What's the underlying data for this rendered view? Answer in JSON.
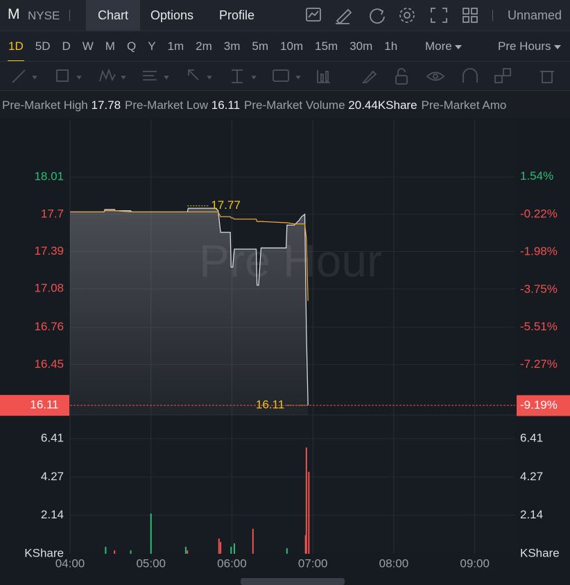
{
  "header": {
    "symbol": "M",
    "exchange": "NYSE",
    "tabs": [
      "Chart",
      "Options",
      "Profile"
    ],
    "layout_name": "Unnamed"
  },
  "timeframes": {
    "items": [
      "1D",
      "5D",
      "D",
      "W",
      "M",
      "Q",
      "Y",
      "1m",
      "2m",
      "3m",
      "5m",
      "10m",
      "15m",
      "30m",
      "1h"
    ],
    "more": "More",
    "session": "Pre Hours"
  },
  "stats": [
    {
      "label": "Pre-Market High",
      "value": "17.78"
    },
    {
      "label": "Pre-Market Low",
      "value": "16.11"
    },
    {
      "label": "Pre-Market Volume",
      "value": "20.44KShare"
    },
    {
      "label": "Pre-Market Amo"
    }
  ],
  "chart_data": [
    {
      "type": "line",
      "watermark": "Pre Hour",
      "xlim": [
        4,
        9.5
      ],
      "ylim": [
        16.03,
        18.49
      ],
      "yticks": [
        18.01,
        17.7,
        17.39,
        17.08,
        16.76,
        16.45
      ],
      "y2lim": [
        -9.63,
        4.23
      ],
      "y2ticks": [
        {
          "value": 1.54,
          "label": "1.54%"
        },
        {
          "value": -0.22,
          "label": "-0.22%"
        },
        {
          "value": -1.98,
          "label": "-1.98%"
        },
        {
          "value": -3.75,
          "label": "-3.75%"
        },
        {
          "value": -5.51,
          "label": "-5.51%"
        },
        {
          "value": -7.27,
          "label": "-7.27%"
        }
      ],
      "up_color": "#2ebd73",
      "down_color": "#f0524f",
      "grid": true,
      "x": [
        4,
        4.42,
        4.43,
        4.55,
        4.56,
        4.75,
        4.76,
        5.45,
        5.46,
        5.8,
        5.83,
        5.86,
        5.98,
        5.99,
        6.01,
        6.03,
        6.3,
        6.31,
        6.33,
        6.36,
        6.67,
        6.68,
        6.77,
        6.83,
        6.86,
        6.9,
        6.92,
        6.94
      ],
      "series": [
        {
          "color": "#d8dbe0",
          "area": true,
          "values": [
            17.72,
            17.72,
            17.74,
            17.74,
            17.73,
            17.73,
            17.72,
            17.72,
            17.75,
            17.75,
            17.73,
            17.55,
            17.55,
            17.26,
            17.26,
            17.41,
            17.41,
            17.11,
            17.11,
            17.42,
            17.42,
            17.61,
            17.61,
            17.65,
            17.68,
            17.7,
            16.72,
            16.11
          ]
        },
        {
          "color": "#e8a33a",
          "area": false,
          "values": [
            17.72,
            17.72,
            17.73,
            17.73,
            17.73,
            17.72,
            17.72,
            17.72,
            17.72,
            17.72,
            17.72,
            17.68,
            17.68,
            17.67,
            17.67,
            17.66,
            17.66,
            17.64,
            17.64,
            17.64,
            17.63,
            17.63,
            17.62,
            17.62,
            17.62,
            17.62,
            17.5,
            16.98
          ]
        }
      ],
      "annotations": [
        {
          "x": 5.45,
          "value": 17.77
        },
        {
          "x": 6.94,
          "value": 16.11
        }
      ],
      "annotation_color": "#f5c518",
      "last_price": 16.11,
      "last_change": {
        "value": -9.19,
        "label": "-9.19%"
      }
    },
    {
      "type": "bar",
      "y_label": "KShare",
      "xlim": [
        4,
        9.5
      ],
      "xticks": [
        {
          "value": 4,
          "label": "04:00"
        },
        {
          "value": 5,
          "label": "05:00"
        },
        {
          "value": 6,
          "label": "06:00"
        },
        {
          "value": 7,
          "label": "07:00"
        },
        {
          "value": 8,
          "label": "08:00"
        },
        {
          "value": 9,
          "label": "09:00"
        }
      ],
      "ylim": [
        0,
        7.72
      ],
      "yticks": [
        2.14,
        4.27,
        6.41
      ],
      "grid": true,
      "x": [
        4.44,
        4.55,
        4.75,
        5.0,
        5.43,
        5.45,
        5.84,
        5.86,
        5.99,
        6.03,
        6.26,
        6.68,
        6.91,
        6.92,
        6.95
      ],
      "values": [
        0.39,
        0.19,
        0.19,
        2.24,
        0.39,
        0.19,
        0.85,
        0.66,
        0.39,
        0.58,
        1.39,
        0.31,
        1.04,
        5.91,
        4.56
      ],
      "colors": [
        "#2ebd73",
        "#f0524f",
        "#2ebd73",
        "#2ebd73",
        "#2ebd73",
        "#f0524f",
        "#f0524f",
        "#f0524f",
        "#2ebd73",
        "#2ebd73",
        "#f0524f",
        "#2ebd73",
        "#f0524f",
        "#f0524f",
        "#f0524f"
      ]
    }
  ]
}
